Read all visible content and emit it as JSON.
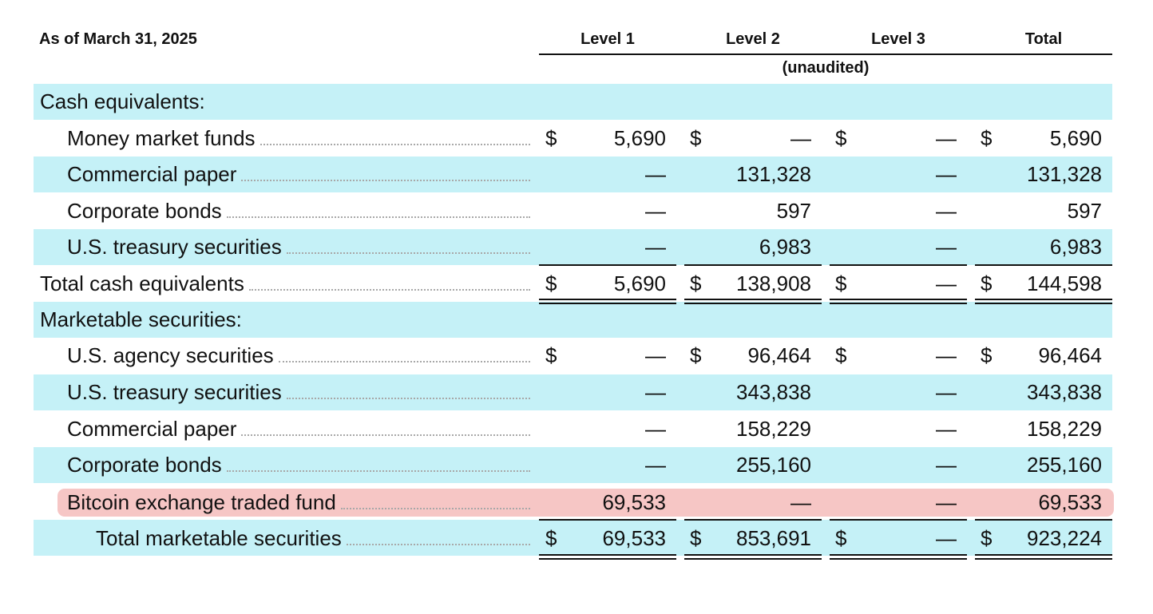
{
  "header": {
    "as_of": "As of March 31, 2025",
    "columns": [
      "Level 1",
      "Level 2",
      "Level 3",
      "Total"
    ],
    "unaudited": "(unaudited)"
  },
  "sections": {
    "cash": {
      "heading": "Cash equivalents:",
      "rows": [
        {
          "label": "Money market funds",
          "l1_sym": "$",
          "l1": "5,690",
          "l2_sym": "$",
          "l2": "—",
          "l3_sym": "$",
          "l3": "—",
          "tot_sym": "$",
          "tot": "5,690"
        },
        {
          "label": "Commercial paper",
          "l1": "—",
          "l2": "131,328",
          "l3": "—",
          "tot": "131,328"
        },
        {
          "label": "Corporate bonds",
          "l1": "—",
          "l2": "597",
          "l3": "—",
          "tot": "597"
        },
        {
          "label": "U.S. treasury securities",
          "l1": "—",
          "l2": "6,983",
          "l3": "—",
          "tot": "6,983"
        }
      ],
      "total": {
        "label": "Total cash equivalents",
        "l1_sym": "$",
        "l1": "5,690",
        "l2_sym": "$",
        "l2": "138,908",
        "l3_sym": "$",
        "l3": "—",
        "tot_sym": "$",
        "tot": "144,598"
      }
    },
    "marketable": {
      "heading": "Marketable securities:",
      "rows": [
        {
          "label": "U.S. agency securities",
          "l1_sym": "$",
          "l1": "—",
          "l2_sym": "$",
          "l2": "96,464",
          "l3_sym": "$",
          "l3": "—",
          "tot_sym": "$",
          "tot": "96,464"
        },
        {
          "label": "U.S. treasury securities",
          "l1": "—",
          "l2": "343,838",
          "l3": "—",
          "tot": "343,838"
        },
        {
          "label": "Commercial paper",
          "l1": "—",
          "l2": "158,229",
          "l3": "—",
          "tot": "158,229"
        },
        {
          "label": "Corporate bonds",
          "l1": "—",
          "l2": "255,160",
          "l3": "—",
          "tot": "255,160"
        },
        {
          "label": "Bitcoin exchange traded fund",
          "l1": "69,533",
          "l2": "—",
          "l3": "—",
          "tot": "69,533"
        }
      ],
      "total": {
        "label": "Total marketable securities",
        "l1_sym": "$",
        "l1": "69,533",
        "l2_sym": "$",
        "l2": "853,691",
        "l3_sym": "$",
        "l3": "—",
        "tot_sym": "$",
        "tot": "923,224"
      }
    }
  },
  "colors": {
    "band": "#c5f1f7",
    "highlight": "#f6c6c5"
  }
}
